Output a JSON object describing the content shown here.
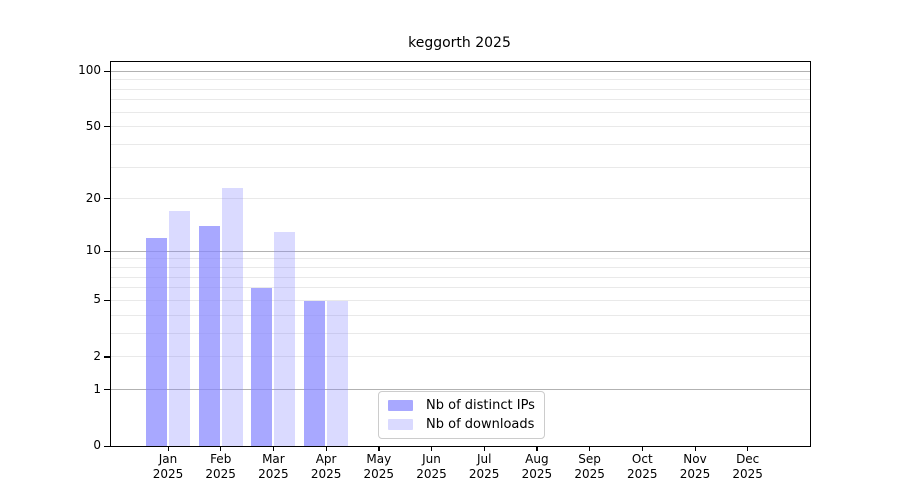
{
  "chart_data": {
    "type": "bar",
    "title": "keggorth 2025",
    "categories": [
      "Jan",
      "Feb",
      "Mar",
      "Apr",
      "May",
      "Jun",
      "Jul",
      "Aug",
      "Sep",
      "Oct",
      "Nov",
      "Dec"
    ],
    "xtick_year": "2025",
    "series": [
      {
        "name": "Nb of distinct IPs",
        "color": "rgba(134,134,255,0.72)",
        "values": [
          12,
          14,
          6,
          5,
          0,
          0,
          0,
          0,
          0,
          0,
          0,
          0
        ]
      },
      {
        "name": "Nb of downloads",
        "color": "rgba(134,134,255,0.30)",
        "values": [
          17,
          23,
          13,
          5,
          0,
          0,
          0,
          0,
          0,
          0,
          0,
          0
        ]
      }
    ],
    "yscale": "log1p",
    "ylim": [
      0,
      112
    ],
    "yticks": [
      0,
      1,
      2,
      5,
      10,
      20,
      50,
      100
    ],
    "gridlines": {
      "major": [
        1,
        10,
        100
      ],
      "minor": [
        2,
        3,
        4,
        5,
        6,
        7,
        8,
        9,
        20,
        30,
        40,
        50,
        60,
        70,
        80,
        90
      ],
      "major_color": "#b2b2b2",
      "minor_color": "#e9e9e9"
    },
    "legend_position": "lower center",
    "grid": "on",
    "xlabel": "",
    "ylabel": ""
  }
}
